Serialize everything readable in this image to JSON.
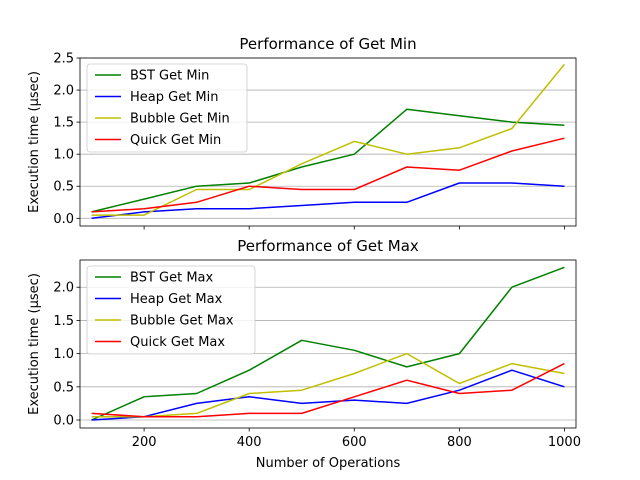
{
  "figure": {
    "xlabel": "Number of Operations",
    "xticks": [
      200,
      400,
      600,
      800,
      1000
    ]
  },
  "chart_data": [
    {
      "type": "line",
      "title": "Performance of Get Min",
      "xlabel": "",
      "ylabel": "Execution time (μsec)",
      "xlim": [
        78,
        1022
      ],
      "ylim": [
        -0.12,
        2.5
      ],
      "yticks": [
        0.0,
        0.5,
        1.0,
        1.5,
        2.0,
        2.5
      ],
      "ytick_labels": [
        "0.0",
        "0.5",
        "1.0",
        "1.5",
        "2.0",
        "2.5"
      ],
      "grid": "y",
      "legend": "top-left",
      "x": [
        100,
        200,
        300,
        400,
        500,
        600,
        700,
        800,
        900,
        1000
      ],
      "series": [
        {
          "name": "BST Get Min",
          "color": "#008000",
          "values": [
            0.1,
            0.3,
            0.5,
            0.55,
            0.8,
            1.0,
            1.7,
            1.6,
            1.5,
            1.45
          ]
        },
        {
          "name": "Heap Get Min",
          "color": "#0000ff",
          "values": [
            0.0,
            0.1,
            0.15,
            0.15,
            0.2,
            0.25,
            0.25,
            0.55,
            0.55,
            0.5
          ]
        },
        {
          "name": "Bubble Get Min",
          "color": "#bfbf00",
          "values": [
            0.05,
            0.05,
            0.45,
            0.45,
            0.85,
            1.2,
            1.0,
            1.1,
            1.4,
            2.4
          ]
        },
        {
          "name": "Quick Get Min",
          "color": "#ff0000",
          "values": [
            0.1,
            0.15,
            0.25,
            0.5,
            0.45,
            0.45,
            0.8,
            0.75,
            1.05,
            1.25
          ]
        }
      ]
    },
    {
      "type": "line",
      "title": "Performance of Get Max",
      "xlabel": "Number of Operations",
      "ylabel": "Execution time (μsec)",
      "xlim": [
        78,
        1022
      ],
      "ylim": [
        -0.12,
        2.41
      ],
      "yticks": [
        0.0,
        0.5,
        1.0,
        1.5,
        2.0
      ],
      "ytick_labels": [
        "0.0",
        "0.5",
        "1.0",
        "1.5",
        "2.0"
      ],
      "grid": "y",
      "legend": "top-left",
      "x": [
        100,
        200,
        300,
        400,
        500,
        600,
        700,
        800,
        900,
        1000
      ],
      "series": [
        {
          "name": "BST Get Max",
          "color": "#008000",
          "values": [
            0.0,
            0.35,
            0.4,
            0.75,
            1.2,
            1.05,
            0.8,
            1.0,
            2.0,
            2.3
          ]
        },
        {
          "name": "Heap Get Max",
          "color": "#0000ff",
          "values": [
            0.0,
            0.05,
            0.25,
            0.35,
            0.25,
            0.3,
            0.25,
            0.45,
            0.75,
            0.5
          ]
        },
        {
          "name": "Bubble Get Max",
          "color": "#bfbf00",
          "values": [
            0.05,
            0.05,
            0.1,
            0.4,
            0.45,
            0.7,
            1.0,
            0.55,
            0.85,
            0.7
          ]
        },
        {
          "name": "Quick Get Max",
          "color": "#ff0000",
          "values": [
            0.1,
            0.05,
            0.05,
            0.1,
            0.1,
            0.35,
            0.6,
            0.4,
            0.45,
            0.85
          ]
        }
      ]
    }
  ]
}
